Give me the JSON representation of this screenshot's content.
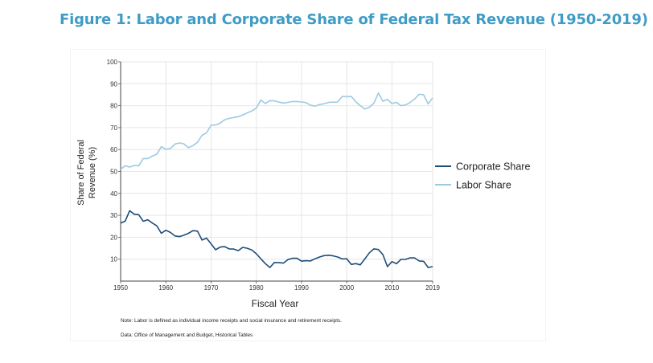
{
  "figure_title": "Figure 1: Labor and Corporate Share of Federal Tax Revenue (1950-2019)",
  "chart_data": {
    "type": "line",
    "title": "Figure 1: Labor and Corporate Share of Federal Tax Revenue (1950-2019)",
    "xlabel": "Fiscal Year",
    "ylabel": "Share of Federal Revenue (%)",
    "ylabel_lines": [
      "Share of Federal",
      "Revenue (%)"
    ],
    "xlim": [
      1950,
      2019
    ],
    "ylim": [
      0,
      100
    ],
    "xticks": [
      1950,
      1960,
      1970,
      1980,
      1990,
      2000,
      2010,
      2019
    ],
    "yticks": [
      10,
      20,
      30,
      40,
      50,
      60,
      70,
      80,
      90,
      100
    ],
    "grid": true,
    "legend_position": "right",
    "x": [
      1950,
      1951,
      1952,
      1953,
      1954,
      1955,
      1956,
      1957,
      1958,
      1959,
      1960,
      1961,
      1962,
      1963,
      1964,
      1965,
      1966,
      1967,
      1968,
      1969,
      1970,
      1971,
      1972,
      1973,
      1974,
      1975,
      1976,
      1977,
      1978,
      1979,
      1980,
      1981,
      1982,
      1983,
      1984,
      1985,
      1986,
      1987,
      1988,
      1989,
      1990,
      1991,
      1992,
      1993,
      1994,
      1995,
      1996,
      1997,
      1998,
      1999,
      2000,
      2001,
      2002,
      2003,
      2004,
      2005,
      2006,
      2007,
      2008,
      2009,
      2010,
      2011,
      2012,
      2013,
      2014,
      2015,
      2016,
      2017,
      2018,
      2019
    ],
    "series": [
      {
        "name": "Corporate Share",
        "color": "#1f4e79",
        "values": [
          26.5,
          27.3,
          32.1,
          30.5,
          30.3,
          27.3,
          28.0,
          26.5,
          25.2,
          21.8,
          23.2,
          22.2,
          20.6,
          20.3,
          20.9,
          21.8,
          23.0,
          22.8,
          18.7,
          19.6,
          17.0,
          14.3,
          15.5,
          15.7,
          14.7,
          14.6,
          13.9,
          15.4,
          15.0,
          14.2,
          12.5,
          10.2,
          8.0,
          6.2,
          8.5,
          8.4,
          8.2,
          9.8,
          10.4,
          10.4,
          9.1,
          9.3,
          9.2,
          10.2,
          11.0,
          11.6,
          11.8,
          11.5,
          11.0,
          10.1,
          10.2,
          7.6,
          8.0,
          7.4,
          10.1,
          12.9,
          14.7,
          14.4,
          12.1,
          6.6,
          8.9,
          7.9,
          9.9,
          9.9,
          10.6,
          10.6,
          9.2,
          9.0,
          6.2,
          6.6
        ]
      },
      {
        "name": "Labor Share",
        "color": "#9ecae1",
        "values": [
          51.0,
          52.6,
          52.0,
          52.7,
          52.6,
          55.9,
          55.9,
          57.0,
          57.9,
          61.3,
          60.1,
          60.5,
          62.5,
          63.0,
          62.6,
          60.8,
          61.8,
          63.3,
          66.5,
          67.6,
          71.1,
          71.2,
          72.0,
          73.6,
          74.2,
          74.6,
          75.0,
          75.8,
          76.7,
          77.6,
          78.9,
          82.6,
          81.0,
          82.3,
          82.2,
          81.6,
          81.2,
          81.5,
          81.9,
          81.9,
          81.7,
          81.4,
          80.2,
          79.8,
          80.5,
          80.9,
          81.5,
          81.6,
          81.7,
          84.2,
          84.1,
          84.2,
          81.8,
          80.0,
          78.5,
          79.3,
          81.1,
          85.8,
          82.0,
          82.9,
          81.0,
          81.5,
          80.0,
          80.3,
          81.5,
          83.0,
          85.2,
          85.0,
          80.8,
          83.6
        ]
      }
    ],
    "annotations": [
      "Note: Labor is defined as individual income receipts and social insurance and retirement receipts.",
      "Data: Office of Management and Budget, Historical Tables"
    ]
  }
}
